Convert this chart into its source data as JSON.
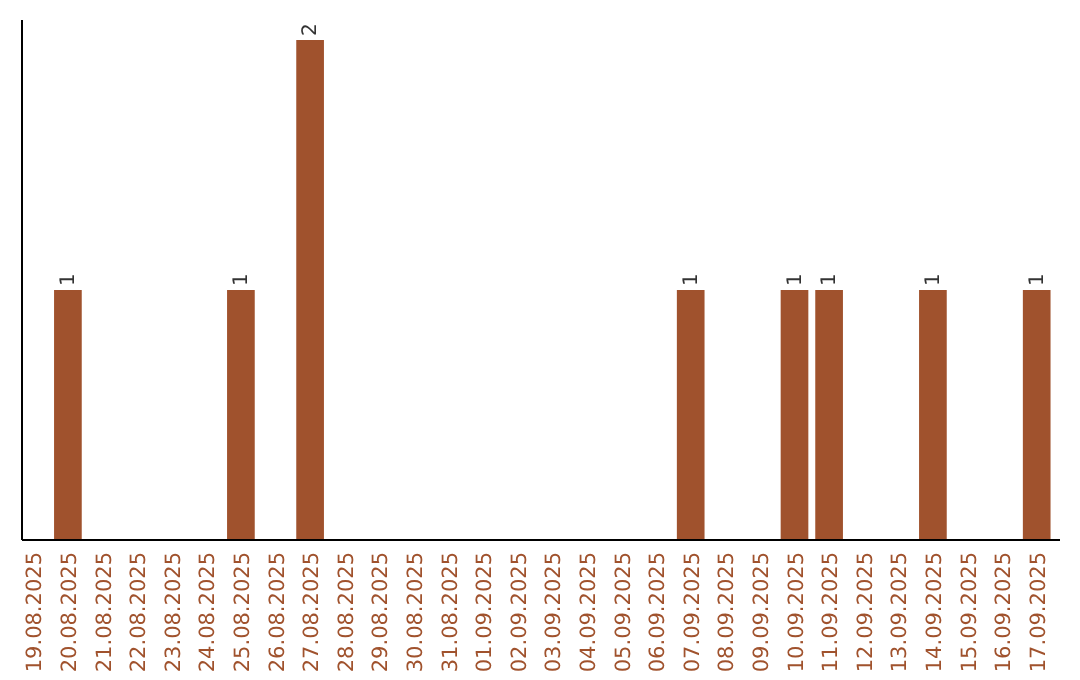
{
  "chart_data": {
    "type": "bar",
    "categories": [
      "19.08.2025",
      "20.08.2025",
      "21.08.2025",
      "22.08.2025",
      "23.08.2025",
      "24.08.2025",
      "25.08.2025",
      "26.08.2025",
      "27.08.2025",
      "28.08.2025",
      "29.08.2025",
      "30.08.2025",
      "31.08.2025",
      "01.09.2025",
      "02.09.2025",
      "03.09.2025",
      "04.09.2025",
      "05.09.2025",
      "06.09.2025",
      "07.09.2025",
      "08.09.2025",
      "09.09.2025",
      "10.09.2025",
      "11.09.2025",
      "12.09.2025",
      "13.09.2025",
      "14.09.2025",
      "15.09.2025",
      "16.09.2025",
      "17.09.2025"
    ],
    "values": [
      0,
      1,
      0,
      0,
      0,
      0,
      1,
      0,
      2,
      0,
      0,
      0,
      0,
      0,
      0,
      0,
      0,
      0,
      0,
      1,
      0,
      0,
      1,
      1,
      0,
      0,
      1,
      0,
      0,
      1
    ],
    "value_labels": [
      null,
      "1",
      null,
      null,
      null,
      null,
      "1",
      null,
      "2",
      null,
      null,
      null,
      null,
      null,
      null,
      null,
      null,
      null,
      null,
      "1",
      null,
      null,
      "1",
      "1",
      null,
      null,
      "1",
      null,
      null,
      "1"
    ],
    "color": "#a0522d"
  }
}
